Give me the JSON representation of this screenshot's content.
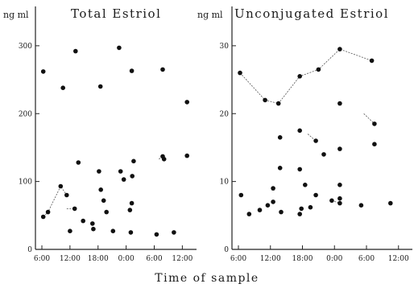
{
  "figure": {
    "xlabel": "Time of sample"
  },
  "chart_data": [
    {
      "type": "scatter",
      "title": "Total Estriol",
      "ylabel": "ng ml",
      "xlabel": "Time of sample",
      "ylim": [
        0,
        320
      ],
      "y_ticks": [
        "0",
        "100",
        "200",
        "300"
      ],
      "x_ticks": [
        "6:00",
        "12:00",
        "18:00",
        "0:00",
        "6:00",
        "12:00"
      ],
      "x_unit": "hours from 6:00",
      "xlim": [
        0,
        32
      ],
      "points": [
        {
          "x": 0.3,
          "y": 262
        },
        {
          "x": 4.5,
          "y": 238
        },
        {
          "x": 7.2,
          "y": 292
        },
        {
          "x": 12.5,
          "y": 240
        },
        {
          "x": 16.5,
          "y": 297
        },
        {
          "x": 19.2,
          "y": 263
        },
        {
          "x": 25.8,
          "y": 265
        },
        {
          "x": 31,
          "y": 217
        },
        {
          "x": 0.3,
          "y": 48
        },
        {
          "x": 1.3,
          "y": 55
        },
        {
          "x": 4.0,
          "y": 93
        },
        {
          "x": 5.3,
          "y": 80
        },
        {
          "x": 6.0,
          "y": 27
        },
        {
          "x": 7.0,
          "y": 60
        },
        {
          "x": 7.8,
          "y": 128
        },
        {
          "x": 8.8,
          "y": 42
        },
        {
          "x": 10.8,
          "y": 38
        },
        {
          "x": 11.0,
          "y": 30
        },
        {
          "x": 12.2,
          "y": 115
        },
        {
          "x": 12.6,
          "y": 88
        },
        {
          "x": 13.2,
          "y": 72
        },
        {
          "x": 13.8,
          "y": 55
        },
        {
          "x": 15.2,
          "y": 27
        },
        {
          "x": 16.8,
          "y": 115
        },
        {
          "x": 17.5,
          "y": 103
        },
        {
          "x": 18.8,
          "y": 58
        },
        {
          "x": 19.0,
          "y": 25
        },
        {
          "x": 19.2,
          "y": 68
        },
        {
          "x": 19.3,
          "y": 108
        },
        {
          "x": 19.6,
          "y": 130
        },
        {
          "x": 24.5,
          "y": 22
        },
        {
          "x": 25.8,
          "y": 137
        },
        {
          "x": 26.1,
          "y": 133
        },
        {
          "x": 28.2,
          "y": 25
        },
        {
          "x": 31.0,
          "y": 138
        }
      ],
      "lines": [
        [
          [
            0.3,
            48
          ],
          [
            1.3,
            55
          ],
          [
            4.0,
            93
          ],
          [
            5.3,
            80
          ]
        ],
        [
          [
            5.3,
            60
          ],
          [
            7.0,
            60
          ]
        ],
        [
          [
            25.0,
            133
          ],
          [
            25.8,
            137
          ],
          [
            26.1,
            133
          ]
        ]
      ]
    },
    {
      "type": "scatter",
      "title": "Unconjugated Estriol",
      "ylabel": "ng ml",
      "xlabel": "Time of sample",
      "ylim": [
        0,
        32
      ],
      "y_ticks": [
        "0",
        "10",
        "20",
        "30"
      ],
      "x_ticks": [
        "6:00",
        "12:00",
        "18:00",
        "0:00",
        "6:00",
        "12:00"
      ],
      "x_unit": "hours from 6:00",
      "xlim": [
        0,
        32
      ],
      "points": [
        {
          "x": 0.3,
          "y": 26
        },
        {
          "x": 5.0,
          "y": 22
        },
        {
          "x": 7.5,
          "y": 21.5
        },
        {
          "x": 11.5,
          "y": 25.5
        },
        {
          "x": 15.0,
          "y": 26.5
        },
        {
          "x": 19.0,
          "y": 29.5
        },
        {
          "x": 25.0,
          "y": 27.8
        },
        {
          "x": 7.8,
          "y": 16.5
        },
        {
          "x": 11.5,
          "y": 17.5
        },
        {
          "x": 14.5,
          "y": 16
        },
        {
          "x": 19.0,
          "y": 21.5
        },
        {
          "x": 25.5,
          "y": 18.5
        },
        {
          "x": 7.8,
          "y": 12
        },
        {
          "x": 11.5,
          "y": 11.8
        },
        {
          "x": 16.0,
          "y": 14
        },
        {
          "x": 19.0,
          "y": 14.8
        },
        {
          "x": 25.5,
          "y": 15.5
        },
        {
          "x": 0.5,
          "y": 8
        },
        {
          "x": 6.5,
          "y": 9
        },
        {
          "x": 12.5,
          "y": 9.5
        },
        {
          "x": 14.5,
          "y": 8
        },
        {
          "x": 19.0,
          "y": 9.5
        },
        {
          "x": 2.0,
          "y": 5.2
        },
        {
          "x": 4.0,
          "y": 5.8
        },
        {
          "x": 5.5,
          "y": 6.5
        },
        {
          "x": 6.5,
          "y": 7
        },
        {
          "x": 8.0,
          "y": 5.5
        },
        {
          "x": 11.5,
          "y": 5.2
        },
        {
          "x": 11.8,
          "y": 6
        },
        {
          "x": 13.5,
          "y": 6.2
        },
        {
          "x": 17.5,
          "y": 7.2
        },
        {
          "x": 19.0,
          "y": 7.5
        },
        {
          "x": 19.0,
          "y": 6.8
        },
        {
          "x": 23.0,
          "y": 6.5
        },
        {
          "x": 28.5,
          "y": 6.8
        }
      ],
      "lines": [
        [
          [
            0.3,
            26
          ],
          [
            5.0,
            22
          ],
          [
            7.5,
            21.5
          ],
          [
            11.5,
            25.5
          ],
          [
            15.0,
            26.5
          ],
          [
            19.0,
            29.5
          ],
          [
            25.0,
            27.8
          ]
        ],
        [
          [
            13.0,
            17.0
          ],
          [
            14.5,
            16.0
          ]
        ],
        [
          [
            23.5,
            20.0
          ],
          [
            25.5,
            18.5
          ]
        ],
        [
          [
            17.5,
            7.2
          ],
          [
            19.0,
            6.8
          ]
        ]
      ]
    }
  ]
}
